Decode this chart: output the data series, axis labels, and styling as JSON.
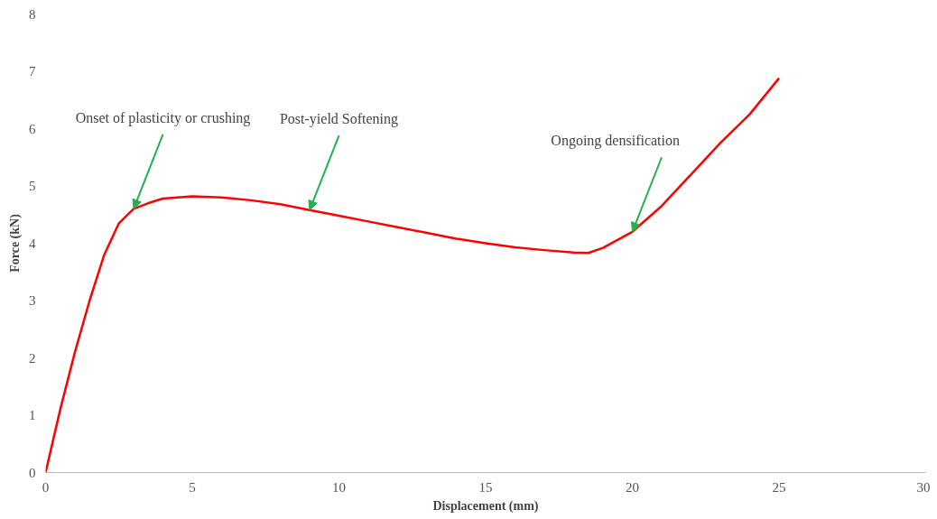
{
  "chart_data": {
    "type": "line",
    "xlabel": "Displacement (mm)",
    "ylabel": "Force (kN)",
    "x": [
      0,
      0.5,
      1,
      1.5,
      2,
      2.5,
      3,
      3.5,
      4,
      5,
      6,
      7,
      8,
      9,
      10,
      11,
      12,
      13,
      14,
      15,
      16,
      17,
      18,
      18.5,
      19,
      20,
      21,
      22,
      23,
      24,
      25
    ],
    "series": [
      {
        "color": "#ff0000",
        "values": [
          0,
          1.1,
          2.1,
          3.0,
          3.8,
          4.35,
          4.6,
          4.7,
          4.78,
          4.82,
          4.8,
          4.75,
          4.68,
          4.58,
          4.48,
          4.38,
          4.28,
          4.18,
          4.08,
          4.0,
          3.93,
          3.88,
          3.84,
          3.83,
          3.92,
          4.2,
          4.65,
          5.2,
          5.75,
          6.25,
          6.88
        ]
      }
    ],
    "xlim": [
      0,
      30
    ],
    "xticks": [
      0,
      5,
      10,
      15,
      20,
      25,
      30
    ],
    "ylim": [
      0,
      8
    ],
    "yticks": [
      0,
      1,
      2,
      3,
      4,
      5,
      6,
      7,
      8
    ],
    "grid": false,
    "marker": "none",
    "line_style": "solid",
    "annotations": [
      {
        "text": "Onset of plasticity or crushing",
        "x": 3,
        "y": 4.6
      },
      {
        "text": "Post-yield Softening",
        "x": 9,
        "y": 4.58
      },
      {
        "text": "Ongoing densification",
        "x": 20,
        "y": 4.2
      }
    ]
  }
}
